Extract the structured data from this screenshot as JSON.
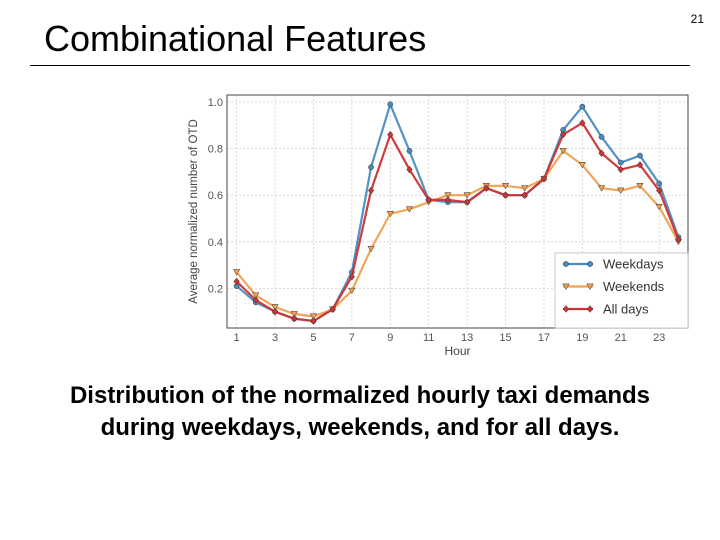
{
  "slide": {
    "title": "Combinational Features",
    "page_number": "21",
    "caption_line1": "Distribution of the normalized hourly taxi demands",
    "caption_line2": "during weekdays, weekends, and for all days."
  },
  "chart_data": {
    "type": "line",
    "title": "",
    "xlabel": "Hour",
    "ylabel": "Average normalized number of OTD",
    "x": [
      1,
      2,
      3,
      4,
      5,
      6,
      7,
      8,
      9,
      10,
      11,
      12,
      13,
      14,
      15,
      16,
      17,
      18,
      19,
      20,
      21,
      22,
      23,
      24
    ],
    "xticks": [
      1,
      3,
      5,
      7,
      9,
      11,
      13,
      15,
      17,
      19,
      21,
      23
    ],
    "yticks": [
      0.2,
      0.4,
      0.6,
      0.8,
      1.0
    ],
    "ytick_labels": [
      "0.2",
      "0.4",
      "0.6",
      "0.8",
      "1.0"
    ],
    "xlim": [
      0.5,
      24.5
    ],
    "ylim": [
      0.03,
      1.03
    ],
    "grid": true,
    "legend_position": "bottom-right",
    "series": [
      {
        "name": "Weekdays",
        "color": "#4a8cc2",
        "marker": "circle",
        "values": [
          0.21,
          0.14,
          0.1,
          0.07,
          0.06,
          0.11,
          0.27,
          0.72,
          0.99,
          0.79,
          0.58,
          0.57,
          0.57,
          0.63,
          0.6,
          0.6,
          0.67,
          0.88,
          0.98,
          0.85,
          0.74,
          0.77,
          0.65,
          0.42
        ]
      },
      {
        "name": "Weekends",
        "color": "#f0a050",
        "marker": "triangle-down",
        "values": [
          0.27,
          0.17,
          0.12,
          0.09,
          0.08,
          0.11,
          0.19,
          0.37,
          0.52,
          0.54,
          0.57,
          0.6,
          0.6,
          0.64,
          0.64,
          0.63,
          0.67,
          0.79,
          0.73,
          0.63,
          0.62,
          0.64,
          0.55,
          0.4
        ]
      },
      {
        "name": "All days",
        "color": "#cc3333",
        "marker": "diamond",
        "values": [
          0.23,
          0.15,
          0.1,
          0.07,
          0.06,
          0.11,
          0.25,
          0.62,
          0.86,
          0.71,
          0.58,
          0.58,
          0.57,
          0.63,
          0.6,
          0.6,
          0.67,
          0.86,
          0.91,
          0.78,
          0.71,
          0.73,
          0.62,
          0.41
        ]
      }
    ]
  }
}
